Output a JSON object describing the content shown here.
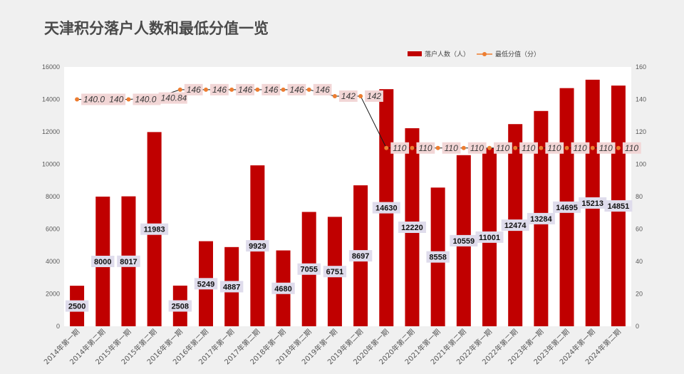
{
  "title": "天津积分落户人数和最低分值一览",
  "colors": {
    "bar": "#c00000",
    "line": "#1a1a1a",
    "marker": "#ed7d31",
    "bar_label_bg": "#dfdcec",
    "line_label_bg": "#f2d6d6",
    "plot_bg": "#ffffff",
    "grid": "#e0e0e0"
  },
  "chart_data": {
    "type": "bar",
    "title": "天津积分落户人数和最低分值一览",
    "categories": [
      "2014年第一期",
      "2014年第二期",
      "2015年第一期",
      "2015年第二期",
      "2016年第一期",
      "2016年第二期",
      "2017年第一期",
      "2017年第二期",
      "2018年第一期",
      "2018年第二期",
      "2019年第一期",
      "2019年第二期",
      "2020年第一期",
      "2020年第二期",
      "2021年第一期",
      "2021年第二期",
      "2022年第一期",
      "2022年第二期",
      "2023年第一期",
      "2023年第二期",
      "2024年第一期",
      "2024年第二期"
    ],
    "series": [
      {
        "name": "落户人数（人）",
        "type": "bar",
        "axis": "left",
        "values": [
          2500,
          8000,
          8017,
          11983,
          2508,
          5249,
          4887,
          9929,
          4680,
          7055,
          6751,
          8697,
          14630,
          12220,
          8558,
          10559,
          11001,
          12474,
          13284,
          14695,
          15213,
          14851
        ],
        "labels": [
          "2500",
          "8000",
          "8017",
          "11983",
          "2508",
          "5249",
          "4887",
          "9929",
          "4680",
          "7055",
          "6751",
          "8697",
          "14630",
          "12220",
          "8558",
          "10559",
          "11001",
          "12474",
          "13284",
          "14695",
          "15213",
          "14851"
        ]
      },
      {
        "name": "最低分值（分）",
        "type": "line",
        "axis": "right",
        "values": [
          140.01,
          140,
          140.01,
          140.84,
          146,
          146,
          146,
          146,
          146,
          146,
          142,
          142,
          110,
          110,
          110,
          110,
          110,
          110,
          110,
          110,
          110,
          110
        ],
        "labels": [
          "140.0",
          "140",
          "140.0",
          "140.84",
          "146",
          "146",
          "146",
          "146",
          "146",
          "146",
          "142",
          "142",
          "110",
          "110",
          "110",
          "110",
          "110",
          "110",
          "110",
          "110",
          "110",
          "110"
        ]
      }
    ],
    "y_left": {
      "min": 0,
      "max": 16000,
      "ticks": [
        "0",
        "2000",
        "4000",
        "6000",
        "8000",
        "10000",
        "12000",
        "14000",
        "16000"
      ]
    },
    "y_right": {
      "min": 0,
      "max": 160,
      "ticks": [
        "0",
        "20",
        "40",
        "60",
        "80",
        "100",
        "120",
        "140",
        "160"
      ]
    },
    "legend_position": "top-right",
    "grid": false
  }
}
